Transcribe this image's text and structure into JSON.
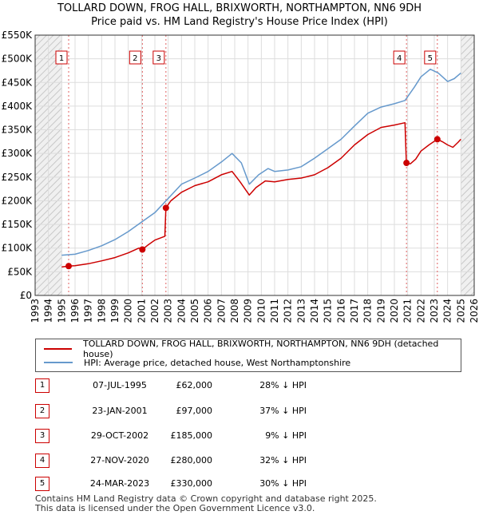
{
  "chart_data": {
    "type": "line",
    "title": "TOLLARD DOWN, FROG HALL, BRIXWORTH, NORTHAMPTON, NN6 9DH",
    "subtitle": "Price paid vs. HM Land Registry's House Price Index (HPI)",
    "xlabel": "",
    "ylabel": "",
    "xlim": [
      1993,
      2026
    ],
    "ylim": [
      0,
      550000
    ],
    "x_ticks": [
      "1993",
      "1994",
      "1995",
      "1996",
      "1997",
      "1998",
      "1999",
      "2000",
      "2001",
      "2002",
      "2003",
      "2004",
      "2005",
      "2006",
      "2007",
      "2008",
      "2009",
      "2010",
      "2011",
      "2012",
      "2013",
      "2014",
      "2015",
      "2016",
      "2017",
      "2018",
      "2019",
      "2020",
      "2021",
      "2022",
      "2023",
      "2024",
      "2025",
      "2026"
    ],
    "y_ticks": [
      {
        "value": 0,
        "label": "£0"
      },
      {
        "value": 50000,
        "label": "£50K"
      },
      {
        "value": 100000,
        "label": "£100K"
      },
      {
        "value": 150000,
        "label": "£150K"
      },
      {
        "value": 200000,
        "label": "£200K"
      },
      {
        "value": 250000,
        "label": "£250K"
      },
      {
        "value": 300000,
        "label": "£300K"
      },
      {
        "value": 350000,
        "label": "£350K"
      },
      {
        "value": 400000,
        "label": "£400K"
      },
      {
        "value": 450000,
        "label": "£450K"
      },
      {
        "value": 500000,
        "label": "£500K"
      },
      {
        "value": 550000,
        "label": "£550K"
      }
    ],
    "grid": true,
    "shaded_ranges": [
      [
        1993,
        1995.0
      ],
      [
        2025.0,
        2026
      ]
    ],
    "series": [
      {
        "name": "TOLLARD DOWN, FROG HALL, BRIXWORTH, NORTHAMPTON, NN6 9DH (detached house)",
        "color": "#cc0000",
        "points": [
          [
            1995.0,
            60000
          ],
          [
            1995.52,
            62000
          ],
          [
            1996.0,
            63000
          ],
          [
            1997.0,
            67000
          ],
          [
            1998.0,
            73000
          ],
          [
            1999.0,
            80000
          ],
          [
            2000.0,
            90000
          ],
          [
            2000.8,
            100000
          ],
          [
            2001.06,
            97000
          ],
          [
            2001.5,
            107000
          ],
          [
            2002.0,
            117000
          ],
          [
            2002.75,
            125000
          ],
          [
            2002.83,
            185000
          ],
          [
            2003.2,
            200000
          ],
          [
            2004.0,
            218000
          ],
          [
            2005.0,
            232000
          ],
          [
            2006.0,
            240000
          ],
          [
            2007.0,
            255000
          ],
          [
            2007.8,
            262000
          ],
          [
            2008.4,
            240000
          ],
          [
            2009.1,
            212000
          ],
          [
            2009.6,
            228000
          ],
          [
            2010.3,
            242000
          ],
          [
            2011.0,
            240000
          ],
          [
            2012.0,
            245000
          ],
          [
            2013.0,
            248000
          ],
          [
            2014.0,
            255000
          ],
          [
            2015.0,
            270000
          ],
          [
            2016.0,
            290000
          ],
          [
            2017.0,
            318000
          ],
          [
            2018.0,
            340000
          ],
          [
            2019.0,
            355000
          ],
          [
            2020.0,
            360000
          ],
          [
            2020.8,
            365000
          ],
          [
            2020.9,
            280000
          ],
          [
            2021.2,
            278000
          ],
          [
            2021.6,
            288000
          ],
          [
            2022.0,
            305000
          ],
          [
            2022.6,
            318000
          ],
          [
            2023.23,
            330000
          ],
          [
            2023.6,
            325000
          ],
          [
            2024.0,
            318000
          ],
          [
            2024.4,
            313000
          ],
          [
            2024.8,
            324000
          ],
          [
            2025.0,
            330000
          ]
        ]
      },
      {
        "name": "HPI: Average price, detached house, West Northamptonshire",
        "color": "#6699cc",
        "points": [
          [
            1995.0,
            85000
          ],
          [
            1995.5,
            86000
          ],
          [
            1996.0,
            87000
          ],
          [
            1997.0,
            95000
          ],
          [
            1998.0,
            105000
          ],
          [
            1999.0,
            118000
          ],
          [
            2000.0,
            135000
          ],
          [
            2001.0,
            155000
          ],
          [
            2002.0,
            175000
          ],
          [
            2003.0,
            205000
          ],
          [
            2004.0,
            235000
          ],
          [
            2005.0,
            248000
          ],
          [
            2006.0,
            262000
          ],
          [
            2007.0,
            282000
          ],
          [
            2007.8,
            300000
          ],
          [
            2008.5,
            280000
          ],
          [
            2009.1,
            235000
          ],
          [
            2009.8,
            255000
          ],
          [
            2010.5,
            268000
          ],
          [
            2011.0,
            262000
          ],
          [
            2012.0,
            265000
          ],
          [
            2013.0,
            272000
          ],
          [
            2014.0,
            290000
          ],
          [
            2015.0,
            310000
          ],
          [
            2016.0,
            330000
          ],
          [
            2017.0,
            358000
          ],
          [
            2018.0,
            385000
          ],
          [
            2019.0,
            398000
          ],
          [
            2020.0,
            405000
          ],
          [
            2020.8,
            412000
          ],
          [
            2021.5,
            440000
          ],
          [
            2022.0,
            462000
          ],
          [
            2022.7,
            478000
          ],
          [
            2023.3,
            470000
          ],
          [
            2024.0,
            452000
          ],
          [
            2024.5,
            458000
          ],
          [
            2025.0,
            470000
          ]
        ]
      }
    ],
    "sales": [
      {
        "num": "1",
        "x": 1995.52,
        "value": 62000,
        "date": "07-JUL-1995",
        "price": "£62,000",
        "hpi": "28% ↓ HPI"
      },
      {
        "num": "2",
        "x": 2001.06,
        "value": 97000,
        "date": "23-JAN-2001",
        "price": "£97,000",
        "hpi": "37% ↓ HPI"
      },
      {
        "num": "3",
        "x": 2002.83,
        "value": 185000,
        "date": "29-OCT-2002",
        "price": "£185,000",
        "hpi": "9% ↓ HPI"
      },
      {
        "num": "4",
        "x": 2020.91,
        "value": 280000,
        "date": "27-NOV-2020",
        "price": "£280,000",
        "hpi": "32% ↓ HPI"
      },
      {
        "num": "5",
        "x": 2023.23,
        "value": 330000,
        "date": "24-MAR-2023",
        "price": "£330,000",
        "hpi": "30% ↓ HPI"
      }
    ]
  },
  "footer": {
    "line1": "Contains HM Land Registry data © Crown copyright and database right 2025.",
    "line2": "This data is licensed under the Open Government Licence v3.0."
  }
}
